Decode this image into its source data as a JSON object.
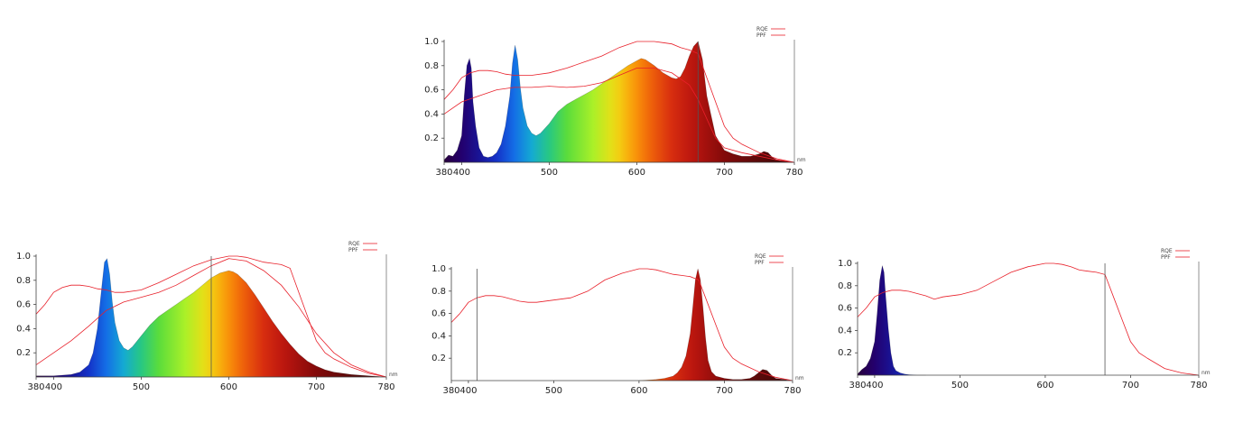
{
  "chart_data": [
    {
      "type": "area",
      "xlabel": "",
      "ylabel": "",
      "xlim": [
        380,
        780
      ],
      "ylim": [
        0,
        1.0
      ],
      "x_ticks": [
        380,
        400,
        500,
        600,
        700,
        780
      ],
      "x_tick_labels": [
        "380",
        "400",
        "500",
        "600",
        "700",
        "780"
      ],
      "y_ticks": [
        0.2,
        0.4,
        0.6,
        0.8,
        1.0
      ],
      "y_tick_labels": [
        "0.2",
        "0.4",
        "0.6",
        "0.8",
        "1.0"
      ],
      "x_axis_end_label": "nm",
      "legend": {
        "position": "top-right",
        "entries": [
          "RQE",
          "PPF"
        ]
      },
      "vline": 670,
      "spectrum": {
        "x": [
          380,
          385,
          390,
          395,
          400,
          403,
          406,
          409,
          411,
          413,
          416,
          420,
          425,
          430,
          435,
          440,
          445,
          450,
          455,
          458,
          461,
          464,
          467,
          470,
          475,
          480,
          485,
          490,
          500,
          510,
          520,
          530,
          540,
          550,
          560,
          570,
          580,
          590,
          600,
          605,
          610,
          620,
          630,
          640,
          645,
          650,
          655,
          660,
          665,
          670,
          675,
          680,
          690,
          700,
          710,
          720,
          730,
          740,
          745,
          750,
          755,
          760,
          770,
          780
        ],
        "y": [
          0.02,
          0.06,
          0.05,
          0.1,
          0.22,
          0.55,
          0.8,
          0.86,
          0.78,
          0.5,
          0.3,
          0.12,
          0.05,
          0.04,
          0.05,
          0.08,
          0.15,
          0.3,
          0.55,
          0.82,
          0.97,
          0.85,
          0.62,
          0.45,
          0.3,
          0.24,
          0.22,
          0.24,
          0.32,
          0.42,
          0.48,
          0.52,
          0.56,
          0.6,
          0.65,
          0.7,
          0.75,
          0.8,
          0.84,
          0.86,
          0.85,
          0.8,
          0.74,
          0.7,
          0.69,
          0.71,
          0.78,
          0.88,
          0.96,
          1.0,
          0.85,
          0.55,
          0.22,
          0.1,
          0.07,
          0.05,
          0.05,
          0.07,
          0.09,
          0.08,
          0.04,
          0.02,
          0.01,
          0.0
        ]
      },
      "rqe": {
        "x": [
          380,
          390,
          400,
          410,
          420,
          430,
          440,
          450,
          460,
          470,
          480,
          500,
          520,
          540,
          560,
          580,
          600,
          610,
          620,
          630,
          640,
          650,
          660,
          670,
          680,
          690,
          700,
          710,
          720,
          740,
          760,
          780
        ],
        "y": [
          0.52,
          0.6,
          0.7,
          0.74,
          0.76,
          0.76,
          0.75,
          0.73,
          0.72,
          0.72,
          0.72,
          0.74,
          0.78,
          0.83,
          0.88,
          0.95,
          1.0,
          1.0,
          1.0,
          0.99,
          0.98,
          0.95,
          0.93,
          0.9,
          0.7,
          0.5,
          0.3,
          0.2,
          0.15,
          0.08,
          0.03,
          0.0
        ]
      },
      "ppf": {
        "x": [
          380,
          400,
          420,
          440,
          460,
          480,
          500,
          520,
          540,
          560,
          580,
          600,
          620,
          640,
          660,
          670,
          680,
          690,
          700,
          720,
          740,
          760,
          780
        ],
        "y": [
          0.4,
          0.5,
          0.55,
          0.6,
          0.62,
          0.62,
          0.63,
          0.62,
          0.63,
          0.66,
          0.72,
          0.78,
          0.78,
          0.74,
          0.64,
          0.52,
          0.36,
          0.2,
          0.12,
          0.08,
          0.05,
          0.02,
          0.0
        ]
      }
    },
    {
      "type": "area",
      "xlabel": "",
      "ylabel": "",
      "xlim": [
        380,
        780
      ],
      "ylim": [
        0,
        1.0
      ],
      "x_ticks": [
        380,
        400,
        500,
        600,
        700,
        780
      ],
      "x_tick_labels": [
        "380",
        "400",
        "500",
        "600",
        "700",
        "780"
      ],
      "y_ticks": [
        0.2,
        0.4,
        0.6,
        0.8,
        1.0
      ],
      "y_tick_labels": [
        "0.2",
        "0.4",
        "0.6",
        "0.8",
        "1.0"
      ],
      "x_axis_end_label": "nm",
      "legend": {
        "position": "top-right",
        "entries": [
          "RQE",
          "PPF"
        ]
      },
      "vline": 580,
      "spectrum": {
        "x": [
          380,
          400,
          420,
          430,
          440,
          445,
          450,
          455,
          458,
          461,
          464,
          467,
          470,
          475,
          480,
          485,
          490,
          500,
          510,
          520,
          530,
          540,
          550,
          560,
          570,
          580,
          590,
          600,
          605,
          610,
          620,
          630,
          640,
          650,
          660,
          670,
          680,
          690,
          700,
          710,
          720,
          740,
          760,
          780
        ],
        "y": [
          0.01,
          0.01,
          0.02,
          0.04,
          0.1,
          0.2,
          0.4,
          0.75,
          0.95,
          0.98,
          0.85,
          0.62,
          0.45,
          0.3,
          0.24,
          0.22,
          0.25,
          0.34,
          0.43,
          0.5,
          0.55,
          0.6,
          0.65,
          0.7,
          0.76,
          0.82,
          0.86,
          0.88,
          0.87,
          0.85,
          0.78,
          0.68,
          0.57,
          0.46,
          0.36,
          0.27,
          0.19,
          0.13,
          0.09,
          0.06,
          0.04,
          0.02,
          0.01,
          0.0
        ]
      },
      "rqe": {
        "x": [
          380,
          390,
          400,
          410,
          420,
          430,
          440,
          450,
          460,
          470,
          480,
          500,
          520,
          540,
          560,
          580,
          600,
          610,
          620,
          630,
          640,
          650,
          660,
          670,
          680,
          690,
          700,
          710,
          720,
          740,
          760,
          780
        ],
        "y": [
          0.52,
          0.6,
          0.7,
          0.74,
          0.76,
          0.76,
          0.75,
          0.73,
          0.72,
          0.7,
          0.7,
          0.72,
          0.78,
          0.85,
          0.92,
          0.97,
          1.0,
          1.0,
          0.99,
          0.97,
          0.95,
          0.94,
          0.93,
          0.9,
          0.7,
          0.5,
          0.3,
          0.2,
          0.15,
          0.08,
          0.03,
          0.0
        ]
      },
      "ppf": {
        "x": [
          380,
          400,
          420,
          440,
          460,
          480,
          500,
          520,
          540,
          560,
          580,
          600,
          620,
          640,
          660,
          680,
          700,
          720,
          740,
          760,
          780
        ],
        "y": [
          0.1,
          0.2,
          0.3,
          0.42,
          0.55,
          0.62,
          0.66,
          0.7,
          0.76,
          0.84,
          0.92,
          0.98,
          0.96,
          0.88,
          0.76,
          0.58,
          0.36,
          0.2,
          0.1,
          0.04,
          0.0
        ]
      }
    },
    {
      "type": "area",
      "xlabel": "",
      "ylabel": "",
      "xlim": [
        380,
        780
      ],
      "ylim": [
        0,
        1.0
      ],
      "x_ticks": [
        380,
        400,
        500,
        600,
        700,
        780
      ],
      "x_tick_labels": [
        "380",
        "400",
        "500",
        "600",
        "700",
        "780"
      ],
      "y_ticks": [
        0.2,
        0.4,
        0.6,
        0.8,
        1.0
      ],
      "y_tick_labels": [
        "0.2",
        "0.4",
        "0.6",
        "0.8",
        "1.0"
      ],
      "x_axis_end_label": "nm",
      "legend": {
        "position": "top-right",
        "entries": [
          "RQE",
          "PPF"
        ]
      },
      "vline": 410,
      "spectrum": {
        "x": [
          600,
          620,
          630,
          640,
          645,
          650,
          655,
          660,
          663,
          666,
          669,
          672,
          675,
          678,
          681,
          685,
          690,
          700,
          710,
          720,
          730,
          735,
          740,
          745,
          750,
          755,
          760,
          770,
          780
        ],
        "y": [
          0.0,
          0.01,
          0.02,
          0.04,
          0.07,
          0.12,
          0.22,
          0.42,
          0.65,
          0.9,
          1.0,
          0.9,
          0.65,
          0.38,
          0.18,
          0.08,
          0.04,
          0.02,
          0.01,
          0.01,
          0.02,
          0.04,
          0.07,
          0.1,
          0.09,
          0.05,
          0.02,
          0.01,
          0.0
        ]
      },
      "rqe": {
        "x": [
          380,
          390,
          400,
          410,
          420,
          430,
          440,
          450,
          460,
          470,
          480,
          500,
          520,
          540,
          560,
          580,
          600,
          610,
          620,
          630,
          640,
          650,
          660,
          670,
          680,
          690,
          700,
          710,
          720,
          740,
          760,
          780
        ],
        "y": [
          0.52,
          0.6,
          0.7,
          0.74,
          0.76,
          0.76,
          0.75,
          0.73,
          0.71,
          0.7,
          0.7,
          0.72,
          0.74,
          0.8,
          0.9,
          0.96,
          1.0,
          1.0,
          0.99,
          0.97,
          0.95,
          0.94,
          0.93,
          0.9,
          0.7,
          0.5,
          0.3,
          0.2,
          0.15,
          0.08,
          0.03,
          0.0
        ]
      }
    },
    {
      "type": "area",
      "xlabel": "",
      "ylabel": "",
      "xlim": [
        380,
        780
      ],
      "ylim": [
        0,
        1.0
      ],
      "x_ticks": [
        380,
        400,
        500,
        600,
        700,
        780
      ],
      "x_tick_labels": [
        "380",
        "400",
        "500",
        "600",
        "700",
        "780"
      ],
      "y_ticks": [
        0.2,
        0.4,
        0.6,
        0.8,
        1.0
      ],
      "y_tick_labels": [
        "0.2",
        "0.4",
        "0.6",
        "0.8",
        "1.0"
      ],
      "x_axis_end_label": "nm",
      "legend": {
        "position": "top-right",
        "entries": [
          "RQE",
          "PPF"
        ]
      },
      "vline": 670,
      "spectrum": {
        "x": [
          380,
          385,
          390,
          395,
          400,
          403,
          406,
          409,
          411,
          413,
          416,
          419,
          422,
          425,
          430,
          435,
          440,
          450,
          460
        ],
        "y": [
          0.01,
          0.05,
          0.08,
          0.15,
          0.3,
          0.55,
          0.85,
          0.98,
          0.92,
          0.7,
          0.42,
          0.2,
          0.08,
          0.04,
          0.02,
          0.01,
          0.005,
          0.0,
          0.0
        ]
      },
      "rqe": {
        "x": [
          380,
          390,
          400,
          410,
          420,
          430,
          440,
          450,
          460,
          470,
          480,
          500,
          520,
          540,
          560,
          580,
          600,
          610,
          620,
          630,
          640,
          650,
          660,
          670,
          680,
          690,
          700,
          710,
          720,
          740,
          760,
          780
        ],
        "y": [
          0.52,
          0.6,
          0.7,
          0.74,
          0.76,
          0.76,
          0.75,
          0.73,
          0.71,
          0.68,
          0.7,
          0.72,
          0.76,
          0.84,
          0.92,
          0.97,
          1.0,
          1.0,
          0.99,
          0.97,
          0.94,
          0.93,
          0.92,
          0.9,
          0.7,
          0.5,
          0.3,
          0.2,
          0.15,
          0.06,
          0.02,
          0.0
        ]
      }
    }
  ]
}
